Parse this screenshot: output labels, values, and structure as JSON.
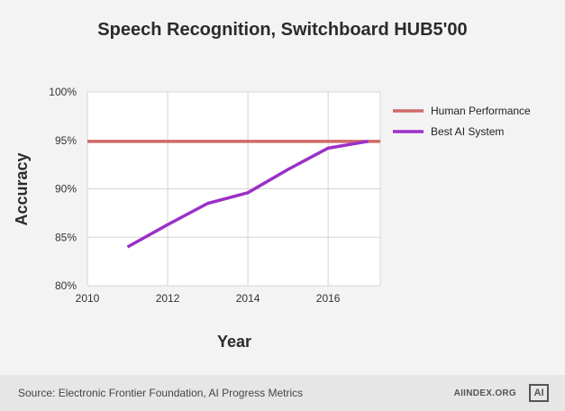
{
  "header": {
    "title": "Speech Recognition, Switchboard HUB5'00"
  },
  "chart_data": {
    "type": "line",
    "title": "Speech Recognition, Switchboard HUB5'00",
    "xlabel": "Year",
    "ylabel": "Accuracy",
    "xlim": [
      2010,
      2017.3
    ],
    "ylim": [
      80,
      100
    ],
    "x_ticks": [
      2010,
      2012,
      2014,
      2016
    ],
    "y_ticks": [
      80,
      85,
      90,
      95,
      100
    ],
    "y_tick_labels": [
      "80%",
      "85%",
      "90%",
      "95%",
      "100%"
    ],
    "grid": true,
    "legend_position": "right",
    "series": [
      {
        "name": "Human Performance",
        "color": "#cf6a6a",
        "x": [
          2010,
          2017.3
        ],
        "y": [
          94.9,
          94.9
        ]
      },
      {
        "name": "Best AI System",
        "color": "#9b30c8",
        "x": [
          2011,
          2012,
          2013,
          2014,
          2015,
          2016,
          2017
        ],
        "y": [
          84.0,
          86.3,
          88.5,
          89.6,
          92.0,
          94.2,
          94.9
        ]
      }
    ]
  },
  "footer": {
    "source": "Source: Electronic Frontier Foundation, AI Progress Metrics",
    "brand": "AIINDEX.ORG",
    "logo_text": "AI"
  }
}
